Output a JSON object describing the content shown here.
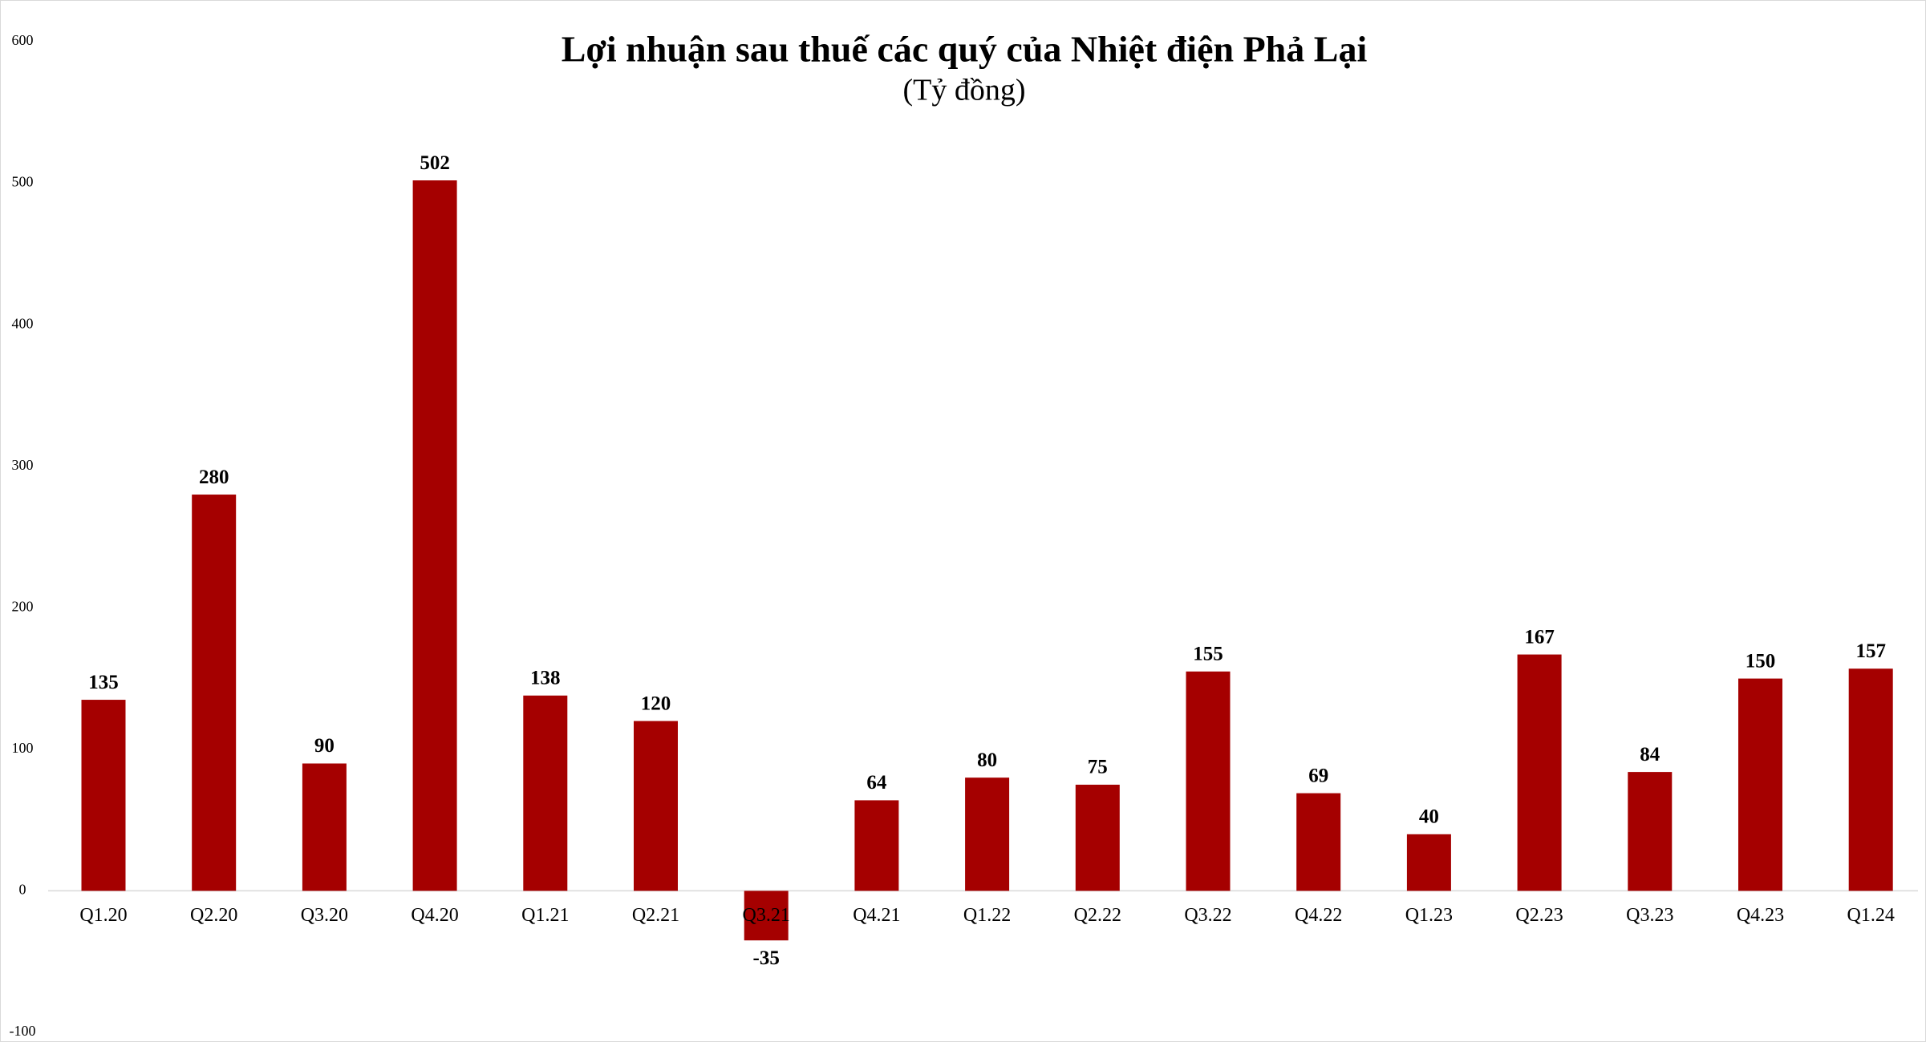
{
  "chart_data": {
    "type": "bar",
    "title": "Lợi nhuận sau thuế các quý của Nhiệt điện Phả Lại",
    "subtitle": "(Tỷ đồng)",
    "categories": [
      "Q1.20",
      "Q2.20",
      "Q3.20",
      "Q4.20",
      "Q1.21",
      "Q2.21",
      "Q3.21",
      "Q4.21",
      "Q1.22",
      "Q2.22",
      "Q3.22",
      "Q4.22",
      "Q1.23",
      "Q2.23",
      "Q3.23",
      "Q4.23",
      "Q1.24"
    ],
    "values": [
      135,
      280,
      90,
      502,
      138,
      120,
      -35,
      64,
      80,
      75,
      155,
      69,
      40,
      167,
      84,
      150,
      157
    ],
    "color": "#a50000",
    "ylim": [
      -100,
      600
    ],
    "yticks": [
      -100,
      0,
      100,
      200,
      300,
      400,
      500,
      600
    ],
    "grid": false
  }
}
